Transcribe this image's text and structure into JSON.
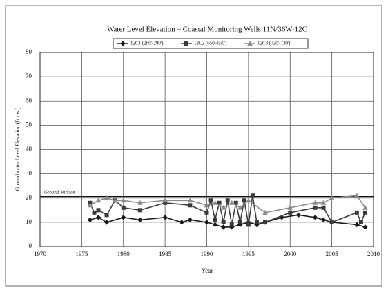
{
  "chart_data": {
    "type": "line",
    "title": "Water Level Elevation – Coastal Monitoring Wells 11N/36W-12C",
    "x_label": "Year",
    "y_label": "Groundwater Level Elevation (ft msl)",
    "xlim": [
      1970,
      2010
    ],
    "xticks": [
      1970,
      1975,
      1980,
      1985,
      1990,
      1995,
      2000,
      2005,
      2010
    ],
    "ylim": [
      0,
      80
    ],
    "yticks": [
      0,
      10,
      20,
      30,
      40,
      50,
      60,
      70,
      80
    ],
    "grid": true,
    "legend": "top",
    "reference_line": {
      "value": 20.5,
      "label": "Ground Surface"
    },
    "series": [
      {
        "name": "12C1 (280'-290')",
        "color": "#1a1a1a",
        "marker": "diamond",
        "x": [
          1976,
          1977,
          1978,
          1980,
          1982,
          1985,
          1987,
          1988,
          1990,
          1991,
          1992,
          1993,
          1994,
          1995,
          1996,
          1997,
          1999,
          2001,
          2003,
          2004,
          2005,
          2008,
          2009
        ],
        "values": [
          11,
          12,
          10,
          12,
          11,
          12,
          10,
          11,
          10,
          9,
          8,
          8,
          9,
          10,
          9,
          10,
          12,
          13,
          12,
          11,
          10,
          9,
          8
        ]
      },
      {
        "name": "12C2 (650'-660')",
        "color": "#3a3a3a",
        "marker": "square",
        "x": [
          1976,
          1976.5,
          1977,
          1978,
          1979,
          1980,
          1982,
          1985,
          1988,
          1990,
          1990.5,
          1991,
          1991.5,
          1992,
          1992.5,
          1993,
          1993.5,
          1994,
          1994.5,
          1995,
          1995.5,
          1996,
          1997,
          2000,
          2003,
          2004,
          2005,
          2008,
          2008.5,
          2009
        ],
        "values": [
          18,
          14,
          15,
          13,
          19,
          16,
          15,
          18,
          17,
          14,
          19,
          11,
          18,
          10,
          19,
          9,
          18,
          10,
          19,
          9,
          21,
          10,
          10,
          14,
          16,
          16,
          10,
          14,
          10,
          14
        ]
      },
      {
        "name": "12C3 (720'-730')",
        "color": "#8a8a8a",
        "marker": "triangle",
        "x": [
          1976,
          1977,
          1978,
          1979,
          1980,
          1982,
          1985,
          1988,
          1990,
          1991,
          1992,
          1993,
          1994,
          1995,
          1997,
          2000,
          2003,
          2004,
          2005,
          2008,
          2009
        ],
        "values": [
          17,
          19,
          20,
          19,
          19,
          18,
          19,
          19,
          17,
          18,
          16,
          18,
          16,
          19,
          14,
          16,
          18,
          18,
          20,
          21,
          16
        ]
      }
    ]
  }
}
